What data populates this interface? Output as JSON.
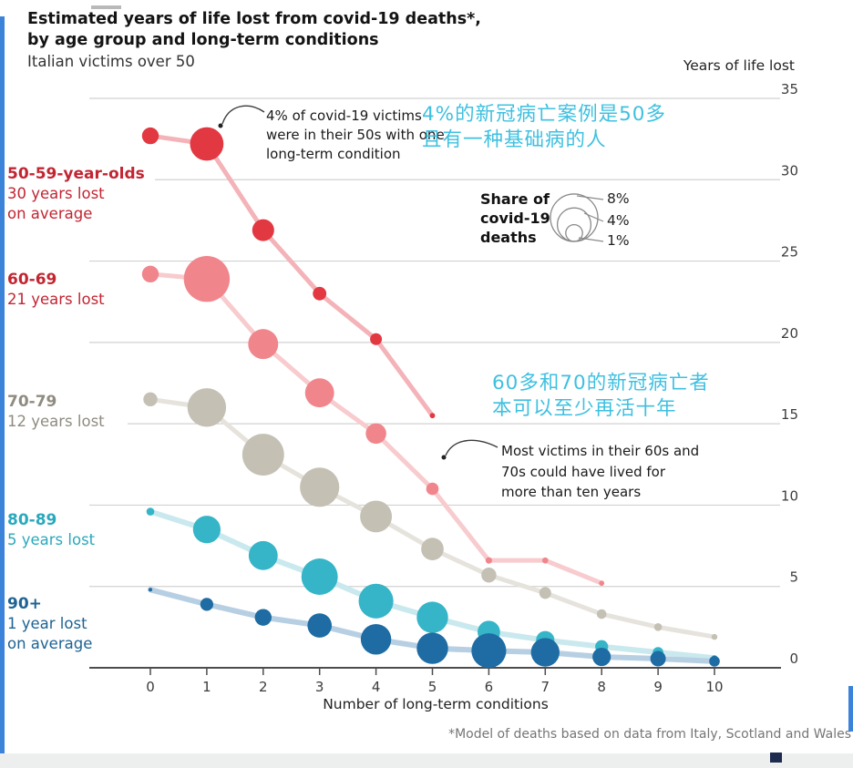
{
  "title": {
    "line1": "Estimated years of life lost from covid-19 deaths*,",
    "line2": "by age group and long-term conditions",
    "subtitle": "Italian victims over 50"
  },
  "footnote": "*Model of deaths based on data from Italy, Scotland and Wales",
  "chart_data": {
    "type": "scatter",
    "x_axis": {
      "label": "Number of long-term conditions",
      "ticks": [
        0,
        1,
        2,
        3,
        4,
        5,
        6,
        7,
        8,
        9,
        10
      ],
      "range": [
        0,
        10
      ]
    },
    "y_axis": {
      "label": "Years of life lost",
      "ticks": [
        0,
        5,
        10,
        15,
        20,
        25,
        30,
        35
      ],
      "range": [
        0,
        35
      ],
      "grid": true
    },
    "bubble_legend": {
      "title_lines": [
        "Share of",
        "covid-19",
        "deaths"
      ],
      "sizes": [
        {
          "label": "8%",
          "value": 8
        },
        {
          "label": "4%",
          "value": 4
        },
        {
          "label": "1%",
          "value": 1
        }
      ]
    },
    "series": [
      {
        "name": "50-59-year-olds",
        "label_lines": [
          "50-59-year-olds",
          "30 years lost",
          "on average"
        ],
        "color": "#e23842",
        "line_color": "#f4b3b8",
        "label_color": "#c22532",
        "points": [
          {
            "conditions": 0,
            "years_lost": 32.7,
            "share_pct": 1.0
          },
          {
            "conditions": 1,
            "years_lost": 32.2,
            "share_pct": 4.0
          },
          {
            "conditions": 2,
            "years_lost": 26.9,
            "share_pct": 1.7
          },
          {
            "conditions": 3,
            "years_lost": 23.0,
            "share_pct": 0.65
          },
          {
            "conditions": 4,
            "years_lost": 20.2,
            "share_pct": 0.5
          },
          {
            "conditions": 5,
            "years_lost": 15.5,
            "share_pct": 0.1
          }
        ]
      },
      {
        "name": "60-69",
        "label_lines": [
          "60-69",
          "21 years lost"
        ],
        "color": "#f0868c",
        "line_color": "#f8cbce",
        "label_color": "#c22532",
        "points": [
          {
            "conditions": 0,
            "years_lost": 24.2,
            "share_pct": 1.0
          },
          {
            "conditions": 1,
            "years_lost": 23.9,
            "share_pct": 7.5
          },
          {
            "conditions": 2,
            "years_lost": 19.9,
            "share_pct": 3.2
          },
          {
            "conditions": 3,
            "years_lost": 16.9,
            "share_pct": 3.0
          },
          {
            "conditions": 4,
            "years_lost": 14.4,
            "share_pct": 1.5
          },
          {
            "conditions": 5,
            "years_lost": 11.0,
            "share_pct": 0.55
          },
          {
            "conditions": 6,
            "years_lost": 6.6,
            "share_pct": 0.15
          },
          {
            "conditions": 7,
            "years_lost": 6.6,
            "share_pct": 0.13
          },
          {
            "conditions": 8,
            "years_lost": 5.2,
            "share_pct": 0.1
          }
        ]
      },
      {
        "name": "70-79",
        "label_lines": [
          "70-79",
          "12 years lost"
        ],
        "color": "#c4c0b4",
        "line_color": "#e5e3dc",
        "label_color": "#8f8b80",
        "points": [
          {
            "conditions": 0,
            "years_lost": 16.5,
            "share_pct": 0.7
          },
          {
            "conditions": 1,
            "years_lost": 16.0,
            "share_pct": 5.3
          },
          {
            "conditions": 2,
            "years_lost": 13.1,
            "share_pct": 6.2
          },
          {
            "conditions": 3,
            "years_lost": 11.1,
            "share_pct": 5.5
          },
          {
            "conditions": 4,
            "years_lost": 9.3,
            "share_pct": 3.6
          },
          {
            "conditions": 5,
            "years_lost": 7.3,
            "share_pct": 1.8
          },
          {
            "conditions": 6,
            "years_lost": 5.7,
            "share_pct": 0.8
          },
          {
            "conditions": 7,
            "years_lost": 4.6,
            "share_pct": 0.5
          },
          {
            "conditions": 8,
            "years_lost": 3.3,
            "share_pct": 0.33
          },
          {
            "conditions": 9,
            "years_lost": 2.5,
            "share_pct": 0.22
          },
          {
            "conditions": 10,
            "years_lost": 1.9,
            "share_pct": 0.12
          }
        ]
      },
      {
        "name": "80-89",
        "label_lines": [
          "80-89",
          "5 years lost"
        ],
        "color": "#35b5c7",
        "line_color": "#c9e9ee",
        "label_color": "#2aa8bd",
        "points": [
          {
            "conditions": 0,
            "years_lost": 9.6,
            "share_pct": 0.22
          },
          {
            "conditions": 1,
            "years_lost": 8.5,
            "share_pct": 2.7
          },
          {
            "conditions": 2,
            "years_lost": 6.9,
            "share_pct": 3.0
          },
          {
            "conditions": 3,
            "years_lost": 5.6,
            "share_pct": 4.7
          },
          {
            "conditions": 4,
            "years_lost": 4.1,
            "share_pct": 4.3
          },
          {
            "conditions": 5,
            "years_lost": 3.1,
            "share_pct": 3.5
          },
          {
            "conditions": 6,
            "years_lost": 2.2,
            "share_pct": 1.8
          },
          {
            "conditions": 7,
            "years_lost": 1.7,
            "share_pct": 1.2
          },
          {
            "conditions": 8,
            "years_lost": 1.3,
            "share_pct": 0.6
          },
          {
            "conditions": 9,
            "years_lost": 0.95,
            "share_pct": 0.4
          },
          {
            "conditions": 10,
            "years_lost": 0.6,
            "share_pct": 0.12
          }
        ]
      },
      {
        "name": "90+",
        "label_lines": [
          "90+",
          "1 year lost",
          "on average"
        ],
        "color": "#1e6ca3",
        "line_color": "#b7cfe3",
        "label_color": "#1d6393",
        "points": [
          {
            "conditions": 0,
            "years_lost": 4.8,
            "share_pct": 0.05
          },
          {
            "conditions": 1,
            "years_lost": 3.9,
            "share_pct": 0.6
          },
          {
            "conditions": 2,
            "years_lost": 3.1,
            "share_pct": 1.0
          },
          {
            "conditions": 3,
            "years_lost": 2.6,
            "share_pct": 2.1
          },
          {
            "conditions": 4,
            "years_lost": 1.75,
            "share_pct": 3.3
          },
          {
            "conditions": 5,
            "years_lost": 1.2,
            "share_pct": 3.5
          },
          {
            "conditions": 6,
            "years_lost": 1.05,
            "share_pct": 4.3
          },
          {
            "conditions": 7,
            "years_lost": 0.95,
            "share_pct": 2.9
          },
          {
            "conditions": 8,
            "years_lost": 0.67,
            "share_pct": 1.2
          },
          {
            "conditions": 9,
            "years_lost": 0.56,
            "share_pct": 0.85
          },
          {
            "conditions": 10,
            "years_lost": 0.4,
            "share_pct": 0.4
          }
        ]
      }
    ],
    "annotations": {
      "en1_lines": [
        "4% of covid-19 victims",
        "were in their 50s with one",
        "long-term condition"
      ],
      "cn1_lines": [
        "4%的新冠病亡案例是50多",
        "且有一种基础病的人"
      ],
      "cn2_lines": [
        "60多和70的新冠病亡者",
        "本可以至少再活十年"
      ],
      "en2_lines": [
        "Most victims in their 60s and",
        "70s could have lived for",
        "more than ten years"
      ],
      "cn_color": "#3ec0e0"
    }
  }
}
